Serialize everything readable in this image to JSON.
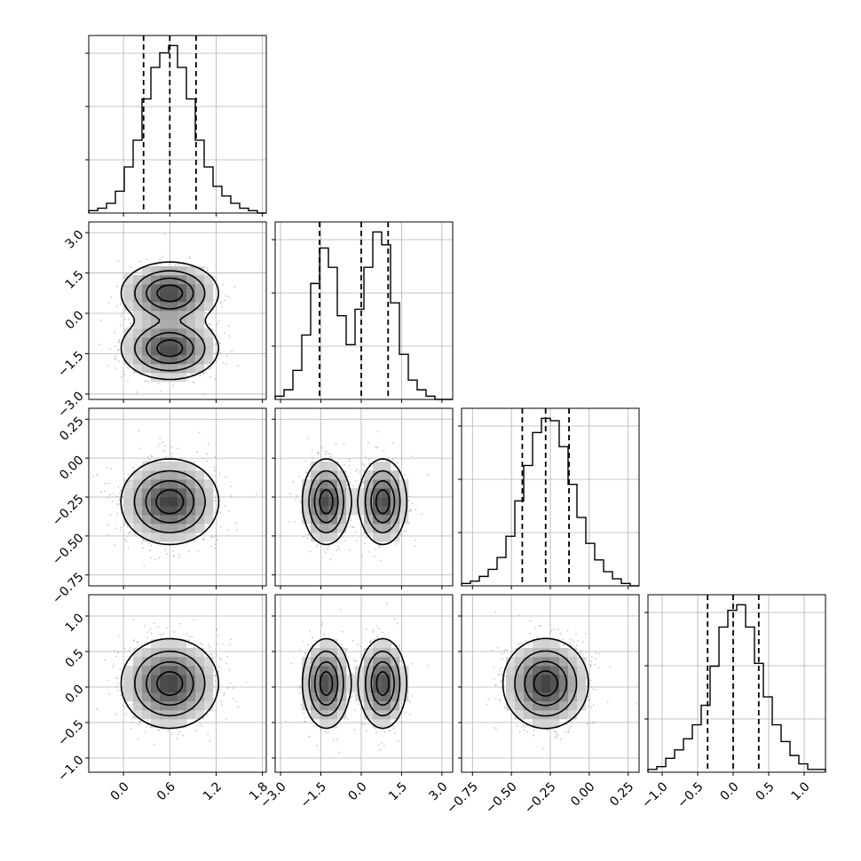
{
  "chart_data": {
    "type": "corner",
    "parameters": [
      {
        "range": [
          -0.45,
          1.85
        ],
        "ticks": [
          0.0,
          0.6,
          1.2,
          1.8
        ],
        "tick_labels": [
          "0.0",
          "0.6",
          "1.2",
          "1.8"
        ],
        "quantiles": [
          0.26,
          0.6,
          0.94
        ],
        "hist": {
          "edges": [
            -0.45,
            -0.335,
            -0.22,
            -0.105,
            0.01,
            0.125,
            0.24,
            0.355,
            0.47,
            0.585,
            0.7,
            0.815,
            0.93,
            1.045,
            1.16,
            1.275,
            1.39,
            1.505,
            1.62,
            1.735,
            1.85
          ],
          "counts": [
            1,
            2,
            4,
            9,
            19,
            30,
            47,
            60,
            66,
            69,
            60,
            47,
            30,
            19,
            11,
            7,
            4,
            2,
            1,
            0
          ]
        }
      },
      {
        "range": [
          -3.2,
          3.4
        ],
        "ticks": [
          -3.0,
          -1.5,
          0.0,
          1.5,
          3.0
        ],
        "tick_labels": [
          "−3.0",
          "−1.5",
          "0.0",
          "1.5",
          "3.0"
        ],
        "quantiles": [
          -1.55,
          0.0,
          1.0
        ],
        "hist": {
          "edges": [
            -3.2,
            -2.87,
            -2.54,
            -2.21,
            -1.88,
            -1.55,
            -1.22,
            -0.89,
            -0.56,
            -0.23,
            0.1,
            0.43,
            0.76,
            1.09,
            1.42,
            1.75,
            2.08,
            2.41,
            2.74,
            3.07,
            3.4
          ],
          "counts": [
            1,
            3,
            9,
            20,
            36,
            47,
            41,
            26,
            17,
            28,
            41,
            52,
            48,
            30,
            14,
            6,
            3,
            1,
            0,
            0
          ]
        }
      },
      {
        "range": [
          -0.82,
          0.32
        ],
        "ticks": [
          -0.75,
          -0.5,
          -0.25,
          0.0,
          0.25
        ],
        "tick_labels": [
          "−0.75",
          "−0.50",
          "−0.25",
          "0.00",
          "0.25"
        ],
        "quantiles": [
          -0.43,
          -0.28,
          -0.13
        ],
        "hist": {
          "edges": [
            -0.82,
            -0.763,
            -0.706,
            -0.649,
            -0.592,
            -0.535,
            -0.478,
            -0.421,
            -0.364,
            -0.307,
            -0.25,
            -0.193,
            -0.136,
            -0.079,
            -0.022,
            0.035,
            0.092,
            0.149,
            0.206,
            0.263,
            0.32
          ],
          "counts": [
            1,
            2,
            4,
            7,
            12,
            21,
            36,
            51,
            65,
            71,
            70,
            59,
            43,
            29,
            18,
            11,
            6,
            3,
            1,
            0
          ]
        }
      },
      {
        "range": [
          -1.2,
          1.3
        ],
        "ticks": [
          -1.0,
          -0.5,
          0.0,
          0.5,
          1.0
        ],
        "tick_labels": [
          "−1.0",
          "−0.5",
          "0.0",
          "0.5",
          "1.0"
        ],
        "quantiles": [
          -0.36,
          0.0,
          0.36
        ],
        "hist": {
          "edges": [
            -1.2,
            -1.075,
            -0.95,
            -0.825,
            -0.7,
            -0.575,
            -0.45,
            -0.325,
            -0.2,
            -0.075,
            0.05,
            0.175,
            0.3,
            0.425,
            0.55,
            0.675,
            0.8,
            0.925,
            1.05,
            1.175,
            1.3
          ],
          "counts": [
            1,
            2,
            5,
            8,
            12,
            17,
            24,
            38,
            52,
            58,
            60,
            52,
            39,
            27,
            17,
            11,
            6,
            3,
            1,
            1
          ]
        }
      }
    ],
    "pairs": [
      {
        "row": 1,
        "col": 0,
        "centers": [
          [
            0.6,
            0.75
          ],
          [
            0.6,
            -1.3
          ]
        ],
        "sigma_x": 0.3,
        "sigma_y": 0.55
      },
      {
        "row": 2,
        "col": 0,
        "centers": [
          [
            0.6,
            -0.28
          ]
        ],
        "sigma_x": 0.3,
        "sigma_y": 0.13
      },
      {
        "row": 2,
        "col": 1,
        "centers": [
          [
            -1.3,
            -0.28
          ],
          [
            0.8,
            -0.28
          ]
        ],
        "sigma_x": 0.42,
        "sigma_y": 0.13
      },
      {
        "row": 3,
        "col": 0,
        "centers": [
          [
            0.6,
            0.05
          ]
        ],
        "sigma_x": 0.3,
        "sigma_y": 0.3
      },
      {
        "row": 3,
        "col": 1,
        "centers": [
          [
            -1.3,
            0.05
          ],
          [
            0.8,
            0.05
          ]
        ],
        "sigma_x": 0.42,
        "sigma_y": 0.3
      },
      {
        "row": 3,
        "col": 2,
        "centers": [
          [
            -0.28,
            0.05
          ]
        ],
        "sigma_x": 0.13,
        "sigma_y": 0.3
      }
    ],
    "colors": {
      "line": "#000000",
      "grid": "#b0b0b0",
      "points": "#9a9a9a"
    },
    "grid": true,
    "xlabel": "",
    "ylabel": ""
  }
}
